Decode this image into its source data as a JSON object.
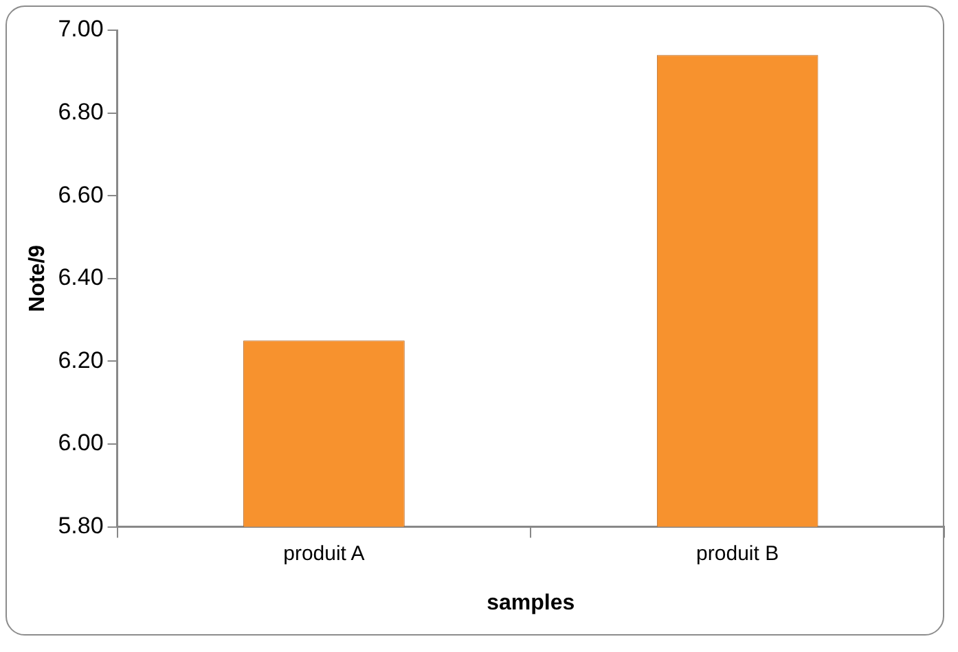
{
  "chart_data": {
    "type": "bar",
    "xlabel": "samples",
    "ylabel": "Note/9",
    "categories": [
      "produit A",
      "produit B"
    ],
    "values": [
      6.25,
      6.94
    ],
    "color": "#f7922e",
    "ylim": [
      5.8,
      7.0
    ],
    "yticks": [
      {
        "value": 5.8,
        "label": "5.80"
      },
      {
        "value": 6.0,
        "label": "6.00"
      },
      {
        "value": 6.2,
        "label": "6.20"
      },
      {
        "value": 6.4,
        "label": "6.40"
      },
      {
        "value": 6.6,
        "label": "6.60"
      },
      {
        "value": 6.8,
        "label": "6.80"
      },
      {
        "value": 7.0,
        "label": "7.00"
      }
    ],
    "grid": false,
    "legend": false
  }
}
